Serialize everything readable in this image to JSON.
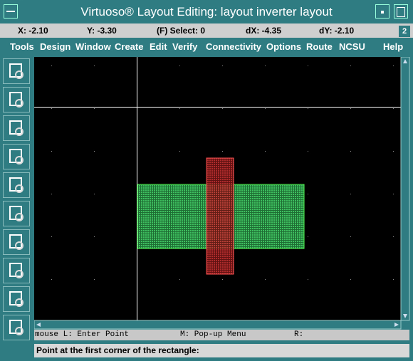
{
  "window": {
    "title": "Virtuoso® Layout Editing: layout inverter layout"
  },
  "status": {
    "x": "X: -2.10",
    "y": "Y: -3.30",
    "select": "(F) Select: 0",
    "dx": "dX: -4.35",
    "dy": "dY: -2.10",
    "number": "2"
  },
  "menu": [
    "Tools",
    "Design",
    "Window",
    "Create",
    "Edit",
    "Verify",
    "Connectivity",
    "Options",
    "Route",
    "NCSU",
    "Help"
  ],
  "mouse": {
    "left": "mouse L: Enter Point",
    "middle": "M: Pop-up Menu",
    "right": "R:"
  },
  "prompt": "Point at the first corner of the rectangle:"
}
